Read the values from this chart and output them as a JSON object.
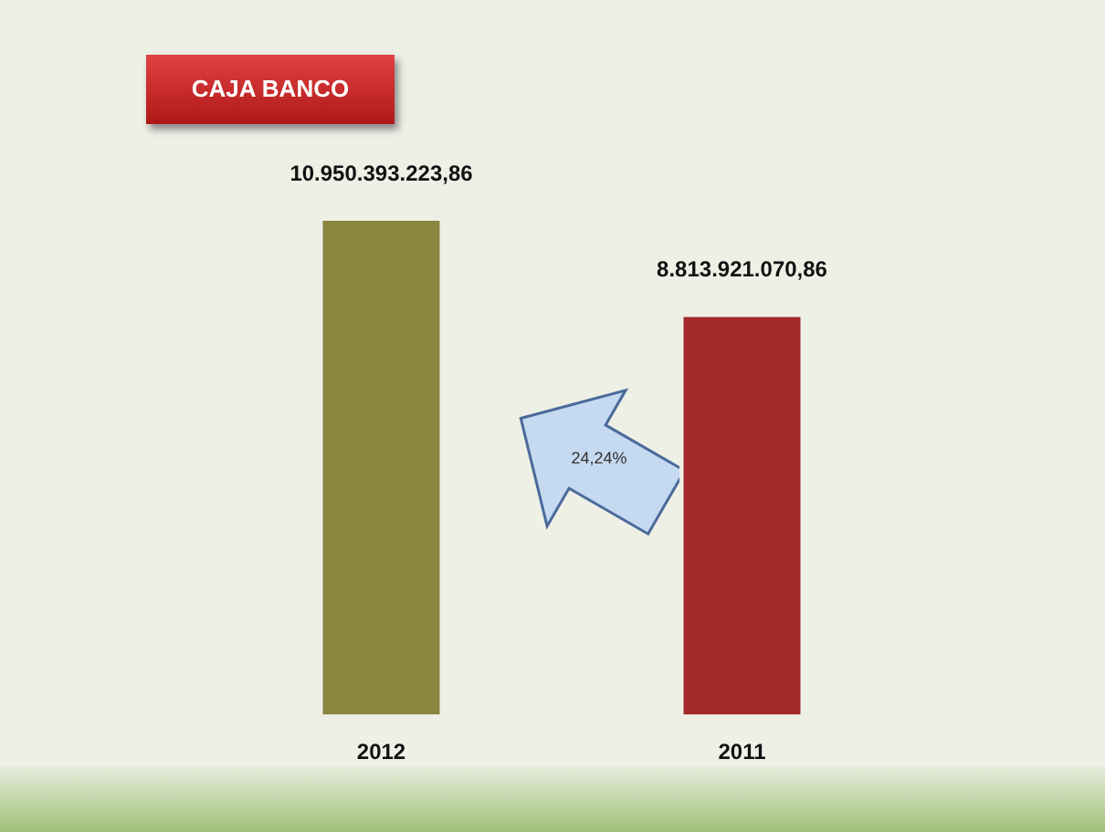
{
  "chart_data": {
    "type": "bar",
    "title": "CAJA BANCO",
    "categories": [
      "2012",
      "2011"
    ],
    "series": [
      {
        "colors": [
          "#8b8540",
          "#a32a2a"
        ],
        "values": [
          10950393223.86,
          8813921070.86
        ],
        "value_labels": [
          "10.950.393.223,86",
          "8.813.921.070,86"
        ]
      }
    ],
    "annotations": [
      "24,24%"
    ],
    "grid": false,
    "legend": false,
    "tick_labels": "x"
  }
}
